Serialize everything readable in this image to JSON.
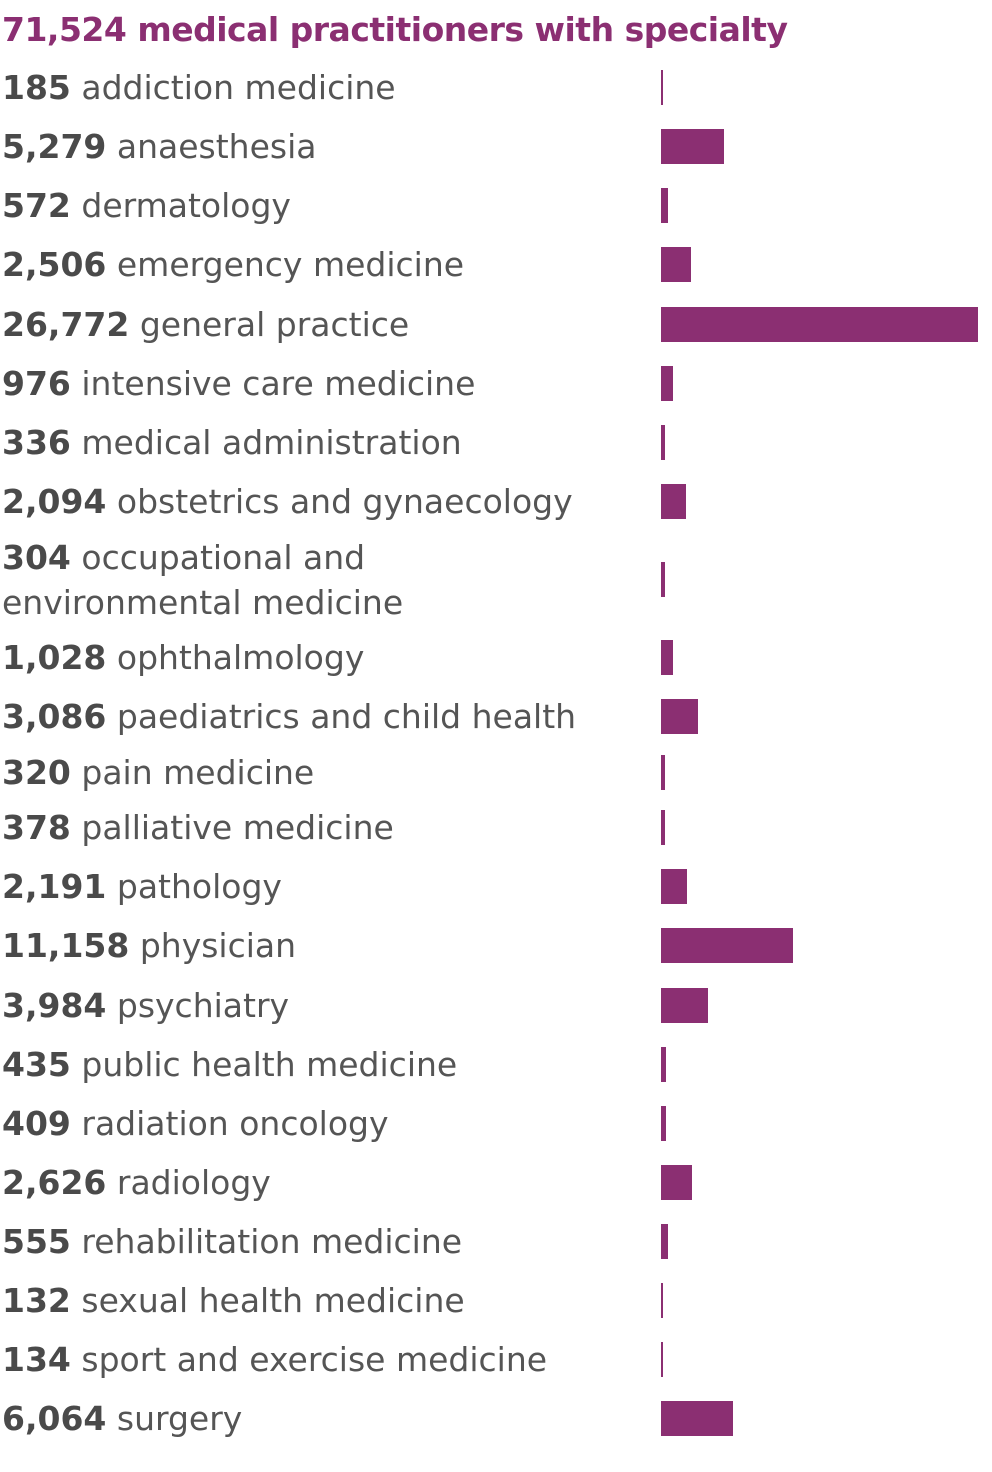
{
  "chart_data": {
    "type": "bar",
    "orientation": "horizontal",
    "title": "71,524 medical practitioners with specialty",
    "color": "#8b2f72",
    "max_value": 26772,
    "categories": [
      "addiction medicine",
      "anaesthesia",
      "dermatology",
      "emergency medicine",
      "general practice",
      "intensive care medicine",
      "medical administration",
      "obstetrics and gynaecology",
      "occupational and environmental medicine",
      "ophthalmology",
      "paediatrics and child health",
      "pain medicine",
      "palliative medicine",
      "pathology",
      "physician",
      "psychiatry",
      "public health medicine",
      "radiation oncology",
      "radiology",
      "rehabilitation medicine",
      "sexual health medicine",
      "sport and exercise medicine",
      "surgery"
    ],
    "value_labels": [
      "185",
      "5,279",
      "572",
      "2,506",
      "26,772",
      "976",
      "336",
      "2,094",
      "304",
      "1,028",
      "3,086",
      "320",
      "378",
      "2,191",
      "11,158",
      "3,984",
      "435",
      "409",
      "2,626",
      "555",
      "132",
      "134",
      "6,064"
    ],
    "values": [
      185,
      5279,
      572,
      2506,
      26772,
      976,
      336,
      2094,
      304,
      1028,
      3086,
      320,
      378,
      2191,
      11158,
      3984,
      435,
      409,
      2626,
      555,
      132,
      134,
      6064
    ]
  }
}
